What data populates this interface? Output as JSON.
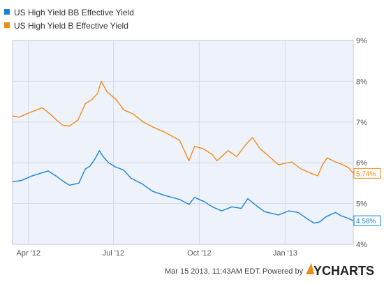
{
  "chart_data": {
    "type": "line",
    "title": "",
    "legend_position": "top-left",
    "grid": true,
    "x_tick_labels": [
      "Apr '12",
      "Jul '12",
      "Oct '12",
      "Jan '13"
    ],
    "x_ticks": [
      "2012-04-01",
      "2012-07-01",
      "2012-10-01",
      "2013-01-01"
    ],
    "x_range": [
      "2012-03-15",
      "2013-03-15"
    ],
    "ylim": [
      4,
      9
    ],
    "y_ticks": [
      4,
      5,
      6,
      7,
      8,
      9
    ],
    "y_tick_labels": [
      "4%",
      "5%",
      "6%",
      "7%",
      "8%",
      "9%"
    ],
    "series": [
      {
        "name": "US High Yield BB Effective Yield",
        "color": "#1a82d4",
        "last_value_label": "4.58%",
        "points": [
          [
            "2012-03-15",
            5.53
          ],
          [
            "2012-03-25",
            5.57
          ],
          [
            "2012-04-05",
            5.68
          ],
          [
            "2012-04-15",
            5.75
          ],
          [
            "2012-04-22",
            5.8
          ],
          [
            "2012-05-01",
            5.67
          ],
          [
            "2012-05-08",
            5.55
          ],
          [
            "2012-05-15",
            5.45
          ],
          [
            "2012-05-25",
            5.5
          ],
          [
            "2012-06-01",
            5.85
          ],
          [
            "2012-06-06",
            5.92
          ],
          [
            "2012-06-12",
            6.12
          ],
          [
            "2012-06-16",
            6.3
          ],
          [
            "2012-06-20",
            6.15
          ],
          [
            "2012-06-26",
            6.0
          ],
          [
            "2012-07-03",
            5.9
          ],
          [
            "2012-07-12",
            5.82
          ],
          [
            "2012-07-20",
            5.62
          ],
          [
            "2012-08-01",
            5.48
          ],
          [
            "2012-08-12",
            5.3
          ],
          [
            "2012-08-25",
            5.2
          ],
          [
            "2012-09-10",
            5.1
          ],
          [
            "2012-09-20",
            4.98
          ],
          [
            "2012-09-26",
            5.15
          ],
          [
            "2012-10-06",
            5.05
          ],
          [
            "2012-10-15",
            4.92
          ],
          [
            "2012-10-25",
            4.82
          ],
          [
            "2012-11-05",
            4.92
          ],
          [
            "2012-11-15",
            4.88
          ],
          [
            "2012-11-22",
            5.12
          ],
          [
            "2012-12-01",
            4.95
          ],
          [
            "2012-12-10",
            4.8
          ],
          [
            "2012-12-25",
            4.72
          ],
          [
            "2013-01-05",
            4.82
          ],
          [
            "2013-01-15",
            4.78
          ],
          [
            "2013-01-25",
            4.62
          ],
          [
            "2013-02-01",
            4.52
          ],
          [
            "2013-02-07",
            4.55
          ],
          [
            "2013-02-14",
            4.68
          ],
          [
            "2013-02-24",
            4.78
          ],
          [
            "2013-03-02",
            4.7
          ],
          [
            "2013-03-08",
            4.65
          ],
          [
            "2013-03-15",
            4.58
          ]
        ]
      },
      {
        "name": "US High Yield B Effective Yield",
        "color": "#f28a18",
        "last_value_label": "5.74%",
        "points": [
          [
            "2012-03-15",
            7.15
          ],
          [
            "2012-03-22",
            7.12
          ],
          [
            "2012-04-01",
            7.22
          ],
          [
            "2012-04-10",
            7.3
          ],
          [
            "2012-04-16",
            7.35
          ],
          [
            "2012-04-24",
            7.2
          ],
          [
            "2012-05-01",
            7.05
          ],
          [
            "2012-05-08",
            6.92
          ],
          [
            "2012-05-15",
            6.9
          ],
          [
            "2012-05-24",
            7.05
          ],
          [
            "2012-06-01",
            7.45
          ],
          [
            "2012-06-08",
            7.55
          ],
          [
            "2012-06-14",
            7.7
          ],
          [
            "2012-06-18",
            8.0
          ],
          [
            "2012-06-24",
            7.75
          ],
          [
            "2012-07-04",
            7.55
          ],
          [
            "2012-07-12",
            7.3
          ],
          [
            "2012-07-22",
            7.2
          ],
          [
            "2012-08-02",
            7.0
          ],
          [
            "2012-08-12",
            6.88
          ],
          [
            "2012-08-25",
            6.75
          ],
          [
            "2012-09-10",
            6.55
          ],
          [
            "2012-09-20",
            6.05
          ],
          [
            "2012-09-26",
            6.4
          ],
          [
            "2012-10-05",
            6.35
          ],
          [
            "2012-10-15",
            6.2
          ],
          [
            "2012-10-20",
            6.05
          ],
          [
            "2012-11-01",
            6.3
          ],
          [
            "2012-11-10",
            6.15
          ],
          [
            "2012-11-20",
            6.45
          ],
          [
            "2012-11-27",
            6.62
          ],
          [
            "2012-12-05",
            6.35
          ],
          [
            "2012-12-15",
            6.15
          ],
          [
            "2012-12-25",
            5.95
          ],
          [
            "2013-01-08",
            6.02
          ],
          [
            "2013-01-18",
            5.85
          ],
          [
            "2013-01-28",
            5.75
          ],
          [
            "2013-02-05",
            5.68
          ],
          [
            "2013-02-10",
            5.95
          ],
          [
            "2013-02-15",
            6.12
          ],
          [
            "2013-02-24",
            6.02
          ],
          [
            "2013-03-04",
            5.95
          ],
          [
            "2013-03-10",
            5.88
          ],
          [
            "2013-03-15",
            5.74
          ]
        ]
      }
    ]
  },
  "footer": {
    "timestamp": "Mar 15 2013, 11:43AM EDT.",
    "powered_by": "Powered by",
    "brand": "YCHARTS",
    "brand_color": "#222222",
    "logo_color": "#f28a18"
  }
}
